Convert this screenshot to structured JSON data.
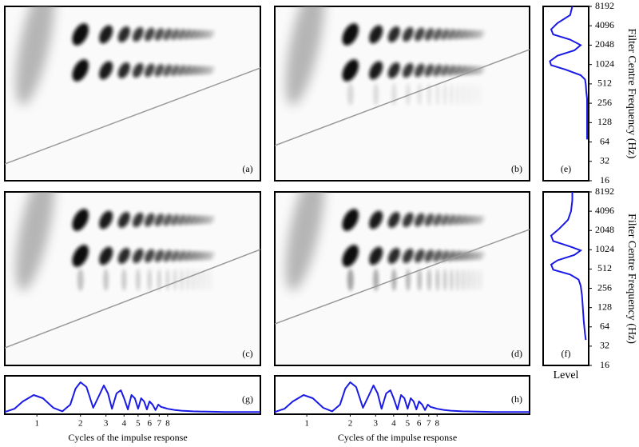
{
  "panel_labels": [
    "(a)",
    "(b)",
    "(c)",
    "(d)"
  ],
  "chart_data": [
    {
      "type": "line",
      "label": "(e)",
      "ylabel": "Filter Centre Frequency (Hz)",
      "color": "#1a1ae6",
      "y": [
        8192,
        6000,
        4500,
        3600,
        3000,
        2500,
        2048,
        1700,
        1400,
        1150,
        1000,
        850,
        700,
        600,
        500,
        400,
        300,
        200,
        128,
        90,
        70
      ],
      "values": [
        0.65,
        0.6,
        0.3,
        0.15,
        0.2,
        0.6,
        0.85,
        0.7,
        0.3,
        0.12,
        0.15,
        0.5,
        0.85,
        0.95,
        0.97,
        0.98,
        1.0,
        1.0,
        1.0,
        1.0,
        1.0
      ],
      "xlim": [
        0,
        1
      ],
      "ylim": [
        16,
        8192
      ],
      "log_scale": true,
      "yticks": [
        16,
        32,
        64,
        128,
        256,
        512,
        1024,
        2048,
        4096,
        8192
      ]
    },
    {
      "type": "line",
      "label": "(f)",
      "ylabel": "Filter Centre Frequency (Hz)",
      "xlabel": "Level",
      "color": "#1a1ae6",
      "y": [
        8192,
        6000,
        4096,
        3000,
        2200,
        1700,
        1400,
        1150,
        1000,
        850,
        700,
        600,
        500,
        420,
        350,
        280,
        200,
        128,
        80,
        50,
        40
      ],
      "values": [
        0.65,
        0.65,
        0.62,
        0.55,
        0.35,
        0.15,
        0.2,
        0.6,
        0.85,
        0.7,
        0.3,
        0.15,
        0.2,
        0.6,
        0.8,
        0.85,
        0.88,
        0.9,
        0.92,
        0.95,
        0.97
      ],
      "xlim": [
        0,
        1
      ],
      "ylim": [
        16,
        8192
      ],
      "log_scale": true,
      "yticks": [
        16,
        32,
        64,
        128,
        256,
        512,
        1024,
        2048,
        4096,
        8192
      ]
    },
    {
      "type": "line",
      "label": "(g)",
      "xlabel": "Cycles of the impulse response",
      "color": "#1a1ae6",
      "x": [
        0.6,
        0.7,
        0.8,
        0.95,
        1.1,
        1.3,
        1.5,
        1.7,
        1.85,
        2.0,
        2.2,
        2.45,
        2.7,
        2.9,
        3.1,
        3.3,
        3.55,
        3.8,
        4.0,
        4.25,
        4.5,
        4.75,
        5.0,
        5.25,
        5.5,
        5.75,
        6.0,
        6.3,
        6.6,
        6.9,
        7.2,
        7.6,
        8.0,
        8.5,
        9,
        10,
        12,
        15,
        20,
        35
      ],
      "values": [
        0.02,
        0.12,
        0.35,
        0.55,
        0.45,
        0.15,
        0.04,
        0.25,
        0.75,
        0.95,
        0.8,
        0.15,
        0.55,
        0.85,
        0.6,
        0.12,
        0.6,
        0.7,
        0.45,
        0.1,
        0.55,
        0.45,
        0.12,
        0.45,
        0.35,
        0.1,
        0.35,
        0.25,
        0.08,
        0.25,
        0.18,
        0.15,
        0.12,
        0.1,
        0.08,
        0.06,
        0.04,
        0.03,
        0.02,
        0.02
      ],
      "xlim": [
        0.6,
        35
      ],
      "ylim": [
        0,
        1
      ],
      "log_scale": true,
      "xticks": [
        1,
        2,
        3,
        4,
        5,
        6,
        7,
        8
      ]
    },
    {
      "type": "line",
      "label": "(h)",
      "xlabel": "Cycles of the impulse response",
      "color": "#1a1ae6",
      "x": [
        0.6,
        0.7,
        0.8,
        0.95,
        1.1,
        1.3,
        1.5,
        1.7,
        1.85,
        2.0,
        2.2,
        2.45,
        2.7,
        2.9,
        3.1,
        3.3,
        3.55,
        3.8,
        4.0,
        4.25,
        4.5,
        4.75,
        5.0,
        5.25,
        5.5,
        5.75,
        6.0,
        6.3,
        6.6,
        6.9,
        7.2,
        7.6,
        8.0,
        8.5,
        9,
        10,
        12,
        15,
        20,
        35
      ],
      "values": [
        0.02,
        0.12,
        0.35,
        0.55,
        0.45,
        0.15,
        0.04,
        0.25,
        0.75,
        0.95,
        0.8,
        0.15,
        0.55,
        0.85,
        0.6,
        0.12,
        0.6,
        0.7,
        0.45,
        0.1,
        0.55,
        0.45,
        0.12,
        0.45,
        0.35,
        0.1,
        0.35,
        0.25,
        0.08,
        0.25,
        0.18,
        0.15,
        0.12,
        0.1,
        0.08,
        0.06,
        0.04,
        0.03,
        0.02,
        0.02
      ],
      "xlim": [
        0.6,
        35
      ],
      "ylim": [
        0,
        1
      ],
      "log_scale": true,
      "xticks": [
        1,
        2,
        3,
        4,
        5,
        6,
        7,
        8
      ]
    }
  ]
}
